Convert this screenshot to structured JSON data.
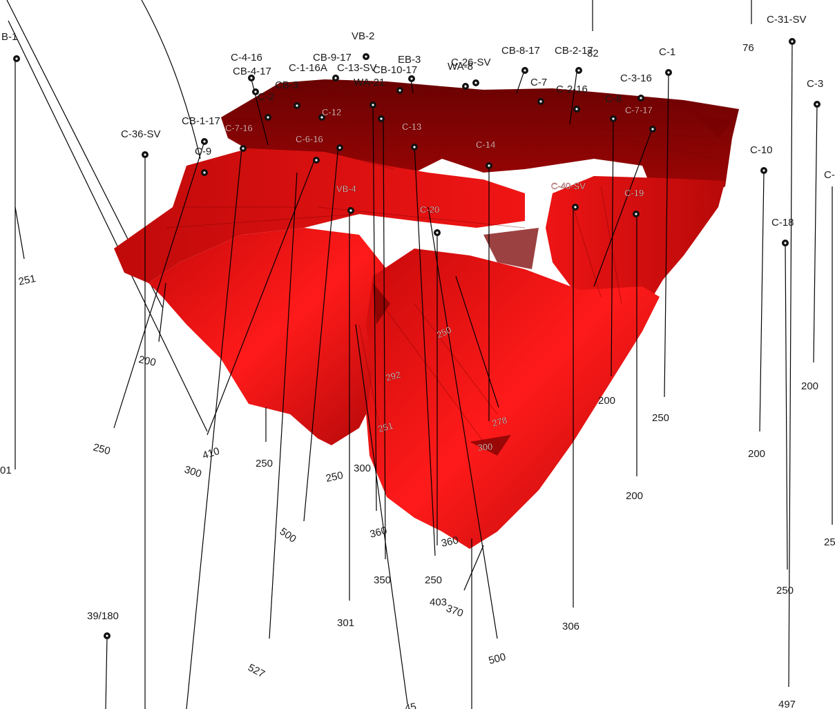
{
  "scene": {
    "background_color": "#ffffff",
    "body_color": "#e01010",
    "body_shade": "#9a0505",
    "body_dark": "#5a0000"
  },
  "drillholes": [
    {
      "label": "VB-2",
      "depth": ""
    },
    {
      "label": "C-4-16",
      "depth": ""
    },
    {
      "label": "CB-9-17",
      "depth": ""
    },
    {
      "label": "EB-3",
      "depth": ""
    },
    {
      "label": "CB-8-17",
      "depth": ""
    },
    {
      "label": "CB-2-17",
      "depth": ""
    },
    {
      "label": "C-31-SV",
      "depth": "497"
    },
    {
      "label": "CB-4-17",
      "depth": ""
    },
    {
      "label": "C-1-16A",
      "depth": ""
    },
    {
      "label": "C-13-SV",
      "depth": ""
    },
    {
      "label": "CB-10-17",
      "depth": ""
    },
    {
      "label": "C-26-SV",
      "depth": ""
    },
    {
      "label": "WA-8",
      "depth": ""
    },
    {
      "label": "C-2",
      "depth": ""
    },
    {
      "label": "C-1",
      "depth": "250"
    },
    {
      "label": "C-7",
      "depth": ""
    },
    {
      "label": "C-2-16",
      "depth": ""
    },
    {
      "label": "C-3-16",
      "depth": ""
    },
    {
      "label": "C-3",
      "depth": "200"
    },
    {
      "label": "CB-1-17",
      "depth": ""
    },
    {
      "label": "C-36-SV",
      "depth": ""
    },
    {
      "label": "C-9",
      "depth": ""
    },
    {
      "label": "C-10",
      "depth": "200"
    },
    {
      "label": "C-18",
      "depth": "250"
    },
    {
      "label": "39/180",
      "depth": ""
    },
    {
      "label": "C-8",
      "depth": ""
    },
    {
      "label": "CB-3",
      "depth": ""
    },
    {
      "label": "WA-21",
      "depth": ""
    },
    {
      "label": "82",
      "depth": ""
    },
    {
      "label": "76",
      "depth": ""
    }
  ],
  "on_body_labels": [
    "C-7-16",
    "C-6-16",
    "C-13",
    "C-14",
    "VB-4",
    "C-20",
    "C-19",
    "C-40-SV",
    "C-7-17",
    "C-12"
  ],
  "edge_labels": [
    {
      "text": "B-1"
    },
    {
      "text": "C-"
    },
    {
      "text": "25"
    },
    {
      "text": "01"
    }
  ],
  "depth_labels": [
    "251",
    "200",
    "250",
    "410",
    "300",
    "250",
    "500",
    "250",
    "300",
    "360",
    "350",
    "250",
    "360",
    "403",
    "370",
    "301",
    "527",
    "500",
    "306",
    "200",
    "250",
    "200",
    "200",
    "45"
  ],
  "body_depth_labels": [
    "292",
    "251",
    "278",
    "300",
    "250"
  ]
}
